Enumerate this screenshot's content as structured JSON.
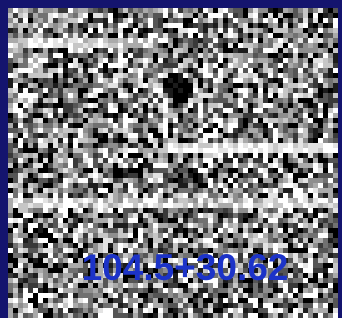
{
  "label": "104.5+30.62"
}
